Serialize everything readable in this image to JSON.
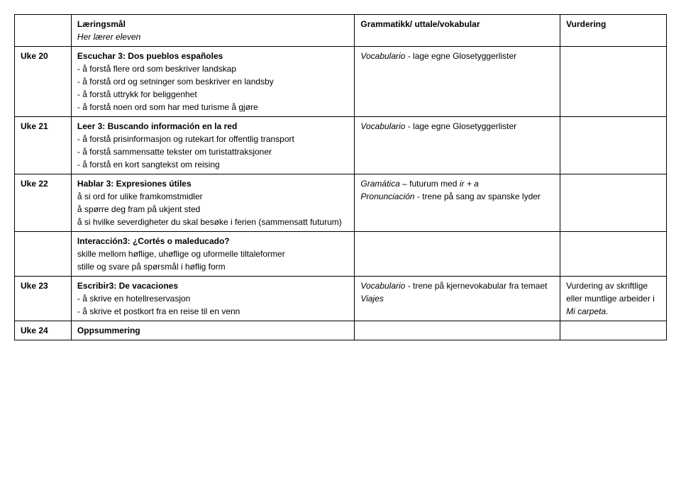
{
  "header": {
    "goals_title": "Læringsmål",
    "goals_sub": "Her lærer eleven",
    "grammar_title": "Grammatikk/ uttale/vokabular",
    "assess_title": "Vurdering"
  },
  "rows": {
    "r20": {
      "week": "Uke 20",
      "goal_title": "Escuchar 3: Dos pueblos españoles",
      "goal_lines": "- å forstå flere ord som beskriver landskap\n- å forstå ord og setninger som beskriver en landsby\n- å forstå uttrykk for beliggenhet\n- å forstå noen ord som har med turisme å gjøre",
      "grammar_i": "Vocabulario",
      "grammar_rest": " - lage egne Glosetyggerlister"
    },
    "r21": {
      "week": "Uke 21",
      "goal_title": "Leer 3: Buscando información en la red",
      "goal_lines": "- å forstå prisinformasjon og rutekart for offentlig transport\n- å forstå sammensatte tekster om turistattraksjoner\n- å forstå en kort sangtekst om reising",
      "grammar_i": "Vocabulario",
      "grammar_rest": " - lage egne Glosetyggerlister"
    },
    "r22": {
      "week": "Uke 22",
      "goal_title": "Hablar 3: Expresiones útiles",
      "goal_lines": "å si ord for ulike framkomstmidler\nå spørre deg fram på ukjent sted\nå si hvilke severdigheter du skal besøke i ferien (sammensatt futurum)",
      "grammar_i1": "Gramática",
      "grammar_rest1": " – futurum med ",
      "grammar_i1b": "ir + a",
      "grammar_i2": "Pronunciación",
      "grammar_rest2": " - trene på sang av spanske lyder"
    },
    "interaction": {
      "title": "Interacción3: ¿Cortés o maleducado?",
      "lines": "skille mellom høflige, uhøflige og uformelle tiltaleformer\nstille og svare på spørsmål i høflig form"
    },
    "r23": {
      "week": "Uke 23",
      "goal_title": "Escribir3: De vacaciones",
      "goal_lines": "- å skrive en hotellreservasjon\n- å skrive et postkort fra en reise til en venn",
      "grammar_i": "Vocabulario",
      "grammar_rest": " - trene på kjernevokabular fra temaet ",
      "grammar_i2": "Viajes",
      "assess_pre": "Vurdering av skriftlige eller muntlige arbeider i ",
      "assess_i": "Mi carpeta",
      "assess_post": "."
    },
    "r24": {
      "week": "Uke 24",
      "goal_title": "Oppsummering"
    }
  }
}
